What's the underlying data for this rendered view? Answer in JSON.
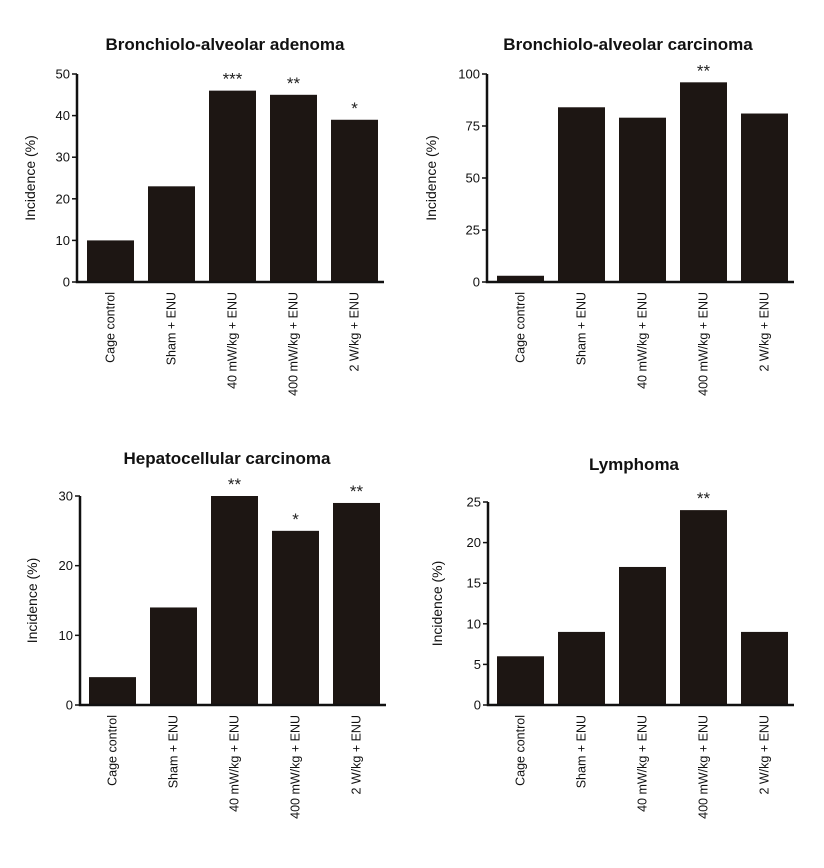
{
  "chart_data": [
    {
      "type": "bar",
      "title": "Bronchiolo-alveolar adenoma",
      "ylabel": "Incidence (%)",
      "categories": [
        "Cage control",
        "Sham + ENU",
        "40 mW/kg + ENU",
        "400 mW/kg + ENU",
        "2 W/kg + ENU"
      ],
      "values": [
        10,
        23,
        46,
        45,
        39
      ],
      "significance": [
        "",
        "",
        "***",
        "**",
        "*"
      ],
      "ylim": [
        0,
        50
      ],
      "yticks": [
        0,
        10,
        20,
        30,
        40,
        50
      ],
      "grid": false
    },
    {
      "type": "bar",
      "title": "Bronchiolo-alveolar carcinoma",
      "ylabel": "Incidence (%)",
      "categories": [
        "Cage control",
        "Sham + ENU",
        "40 mW/kg + ENU",
        "400 mW/kg + ENU",
        "2 W/kg + ENU"
      ],
      "values": [
        3,
        84,
        79,
        96,
        81
      ],
      "significance": [
        "",
        "",
        "",
        "**",
        ""
      ],
      "ylim": [
        0,
        100
      ],
      "yticks": [
        0,
        25,
        50,
        75,
        100
      ],
      "grid": false
    },
    {
      "type": "bar",
      "title": "Hepatocellular carcinoma",
      "ylabel": "Incidence (%)",
      "categories": [
        "Cage control",
        "Sham + ENU",
        "40 mW/kg + ENU",
        "400 mW/kg + ENU",
        "2 W/kg + ENU"
      ],
      "values": [
        4,
        14,
        30,
        25,
        29
      ],
      "significance": [
        "",
        "",
        "**",
        "*",
        "**"
      ],
      "ylim": [
        0,
        30
      ],
      "yticks": [
        0,
        10,
        20,
        30
      ],
      "grid": false
    },
    {
      "type": "bar",
      "title": "Lymphoma",
      "ylabel": "Incidence (%)",
      "categories": [
        "Cage control",
        "Sham + ENU",
        "40 mW/kg + ENU",
        "400 mW/kg + ENU",
        "2 W/kg + ENU"
      ],
      "values": [
        6,
        9,
        17,
        24,
        9
      ],
      "significance": [
        "",
        "",
        "",
        "**",
        ""
      ],
      "ylim": [
        0,
        25
      ],
      "yticks": [
        0,
        5,
        10,
        15,
        20,
        25
      ],
      "grid": false
    }
  ]
}
